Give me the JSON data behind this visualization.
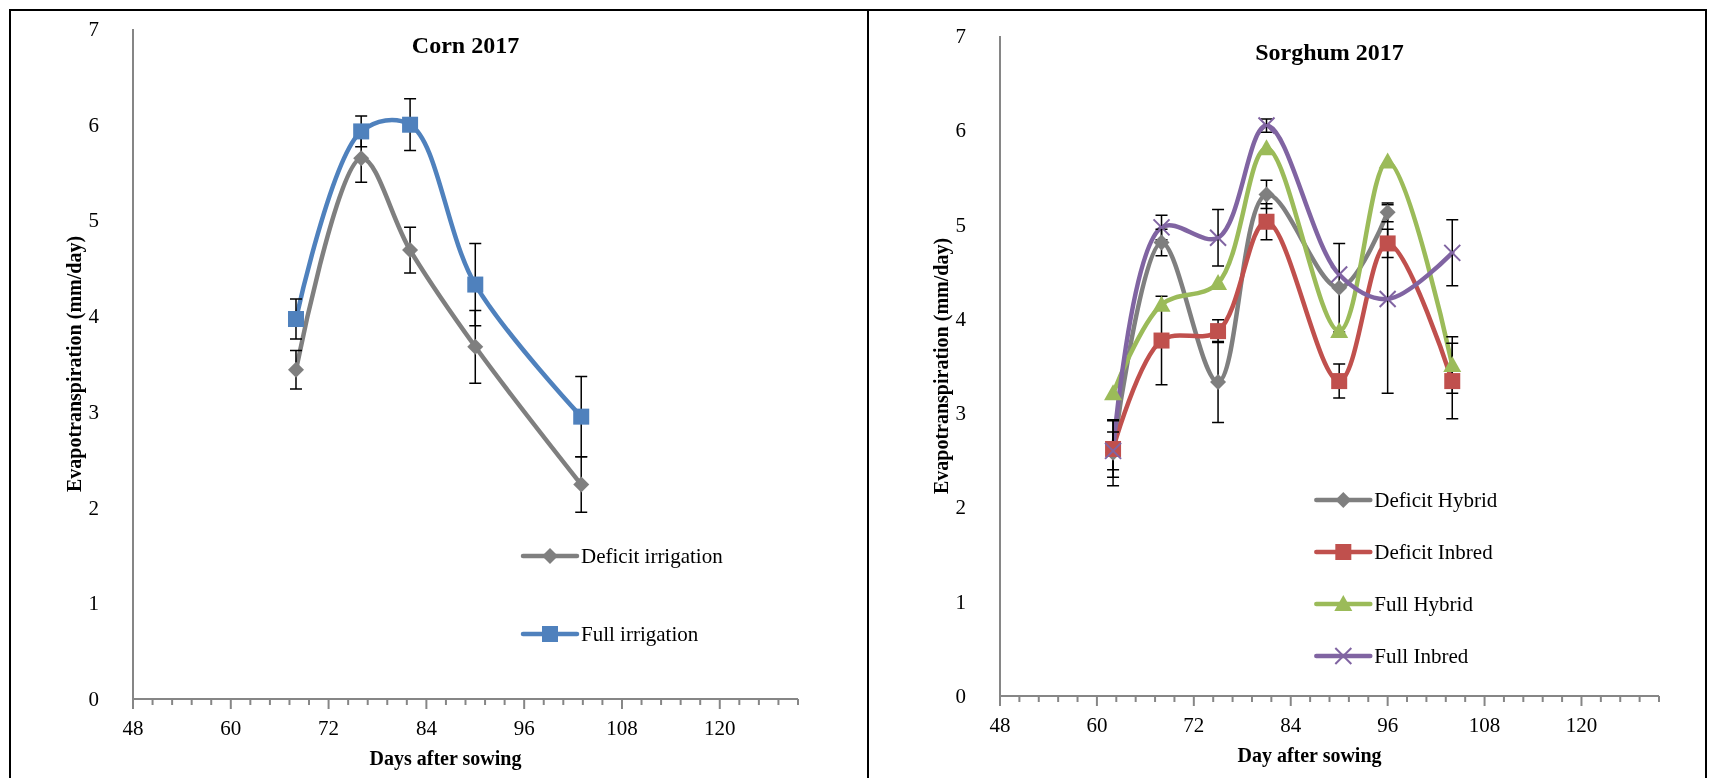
{
  "chart_data": [
    {
      "type": "line",
      "title": "Corn 2017",
      "xlabel": "Days after sowing",
      "ylabel": "Evapotranspiration (mm/day)",
      "xlim": [
        48,
        129.6
      ],
      "xticks": [
        48,
        {
          "value": 50.4,
          "label": null
        },
        {
          "value": 52.8,
          "label": null
        },
        {
          "value": 55.2,
          "label": null
        },
        {
          "value": 57.6,
          "label": null
        },
        60,
        {
          "value": 62.4,
          "label": null
        },
        {
          "value": 64.8,
          "label": null
        },
        {
          "value": 67.2,
          "label": null
        },
        {
          "value": 69.6,
          "label": null
        },
        72,
        {
          "value": 74.4,
          "label": null
        },
        {
          "value": 76.8,
          "label": null
        },
        {
          "value": 79.2,
          "label": null
        },
        {
          "value": 81.6,
          "label": null
        },
        84,
        {
          "value": 86.4,
          "label": null
        },
        {
          "value": 88.8,
          "label": null
        },
        {
          "value": 91.2,
          "label": null
        },
        {
          "value": 93.6,
          "label": null
        },
        96,
        {
          "value": 98.4,
          "label": null
        },
        {
          "value": 100.8,
          "label": null
        },
        {
          "value": 103.2,
          "label": null
        },
        {
          "value": 105.6,
          "label": null
        },
        108,
        {
          "value": 110.4,
          "label": null
        },
        {
          "value": 112.8,
          "label": null
        },
        {
          "value": 115.2,
          "label": null
        },
        {
          "value": 117.6,
          "label": null
        },
        120,
        {
          "value": 122.4,
          "label": null
        },
        {
          "value": 124.8,
          "label": null
        },
        {
          "value": 127.2,
          "label": null
        },
        {
          "value": 129.6,
          "label": null
        }
      ],
      "ylim": [
        0,
        7
      ],
      "yticks": [
        0,
        1,
        2,
        3,
        4,
        5,
        6,
        7
      ],
      "grid": false,
      "legend": "bottom right",
      "x": [
        68,
        76,
        82,
        90,
        103
      ],
      "series": [
        {
          "name": "Deficit irrigation",
          "color": "#7f7f7f",
          "marker": "diamond",
          "values": [
            3.44,
            5.65,
            4.69,
            3.68,
            2.24
          ],
          "errors": [
            0.2,
            0.25,
            0.24,
            0.38,
            0.29
          ]
        },
        {
          "name": "Full irrigation",
          "color": "#4f81bd",
          "marker": "square",
          "values": [
            3.97,
            5.93,
            6.0,
            4.33,
            2.95
          ],
          "errors": [
            0.21,
            0.16,
            0.27,
            0.43,
            0.42
          ]
        }
      ]
    },
    {
      "type": "line",
      "title": "Sorghum 2017",
      "xlabel": "Day after sowing",
      "ylabel": "Evapotranspiration (mm/day)",
      "xlim": [
        48,
        129.6
      ],
      "xticks": [
        48,
        {
          "value": 50.4,
          "label": null
        },
        {
          "value": 52.8,
          "label": null
        },
        {
          "value": 55.2,
          "label": null
        },
        {
          "value": 57.6,
          "label": null
        },
        60,
        {
          "value": 62.4,
          "label": null
        },
        {
          "value": 64.8,
          "label": null
        },
        {
          "value": 67.2,
          "label": null
        },
        {
          "value": 69.6,
          "label": null
        },
        72,
        {
          "value": 74.4,
          "label": null
        },
        {
          "value": 76.8,
          "label": null
        },
        {
          "value": 79.2,
          "label": null
        },
        {
          "value": 81.6,
          "label": null
        },
        84,
        {
          "value": 86.4,
          "label": null
        },
        {
          "value": 88.8,
          "label": null
        },
        {
          "value": 91.2,
          "label": null
        },
        {
          "value": 93.6,
          "label": null
        },
        96,
        {
          "value": 98.4,
          "label": null
        },
        {
          "value": 100.8,
          "label": null
        },
        {
          "value": 103.2,
          "label": null
        },
        {
          "value": 105.6,
          "label": null
        },
        108,
        {
          "value": 110.4,
          "label": null
        },
        {
          "value": 112.8,
          "label": null
        },
        {
          "value": 115.2,
          "label": null
        },
        {
          "value": 117.6,
          "label": null
        },
        120,
        {
          "value": 122.4,
          "label": null
        },
        {
          "value": 124.8,
          "label": null
        },
        {
          "value": 127.2,
          "label": null
        },
        {
          "value": 129.6,
          "label": null
        }
      ],
      "ylim": [
        0,
        7
      ],
      "yticks": [
        0,
        1,
        2,
        3,
        4,
        5,
        6,
        7
      ],
      "grid": false,
      "legend": "bottom",
      "x": [
        62,
        68,
        75,
        81,
        90,
        96,
        104
      ],
      "series": [
        {
          "name": "Deficit Hybrid",
          "color": "#7f7f7f",
          "marker": "diamond",
          "values": [
            2.58,
            4.81,
            3.33,
            5.32,
            4.33,
            5.13,
            null
          ],
          "errors": [
            0.35,
            0.14,
            0.43,
            0.15,
            0.47,
            0.1,
            null
          ]
        },
        {
          "name": "Deficit Inbred",
          "color": "#c0504d",
          "marker": "square",
          "values": [
            2.62,
            3.77,
            3.87,
            5.03,
            3.34,
            4.8,
            3.34
          ],
          "errors": [
            0.3,
            0.47,
            0.12,
            0.19,
            0.18,
            0.15,
            0.4
          ]
        },
        {
          "name": "Full Hybrid",
          "color": "#9bbb59",
          "marker": "triangle",
          "values": [
            3.21,
            4.15,
            4.38,
            5.81,
            3.87,
            5.67,
            3.51
          ],
          "errors": [
            null,
            null,
            null,
            null,
            null,
            null,
            0.3
          ]
        },
        {
          "name": "Full Inbred",
          "color": "#8064a2",
          "marker": "cross",
          "values": [
            2.6,
            4.97,
            4.86,
            6.05,
            4.47,
            4.21,
            4.7
          ],
          "errors": [
            0.2,
            0.13,
            0.3,
            0.07,
            null,
            1.0,
            0.35
          ]
        }
      ]
    }
  ]
}
